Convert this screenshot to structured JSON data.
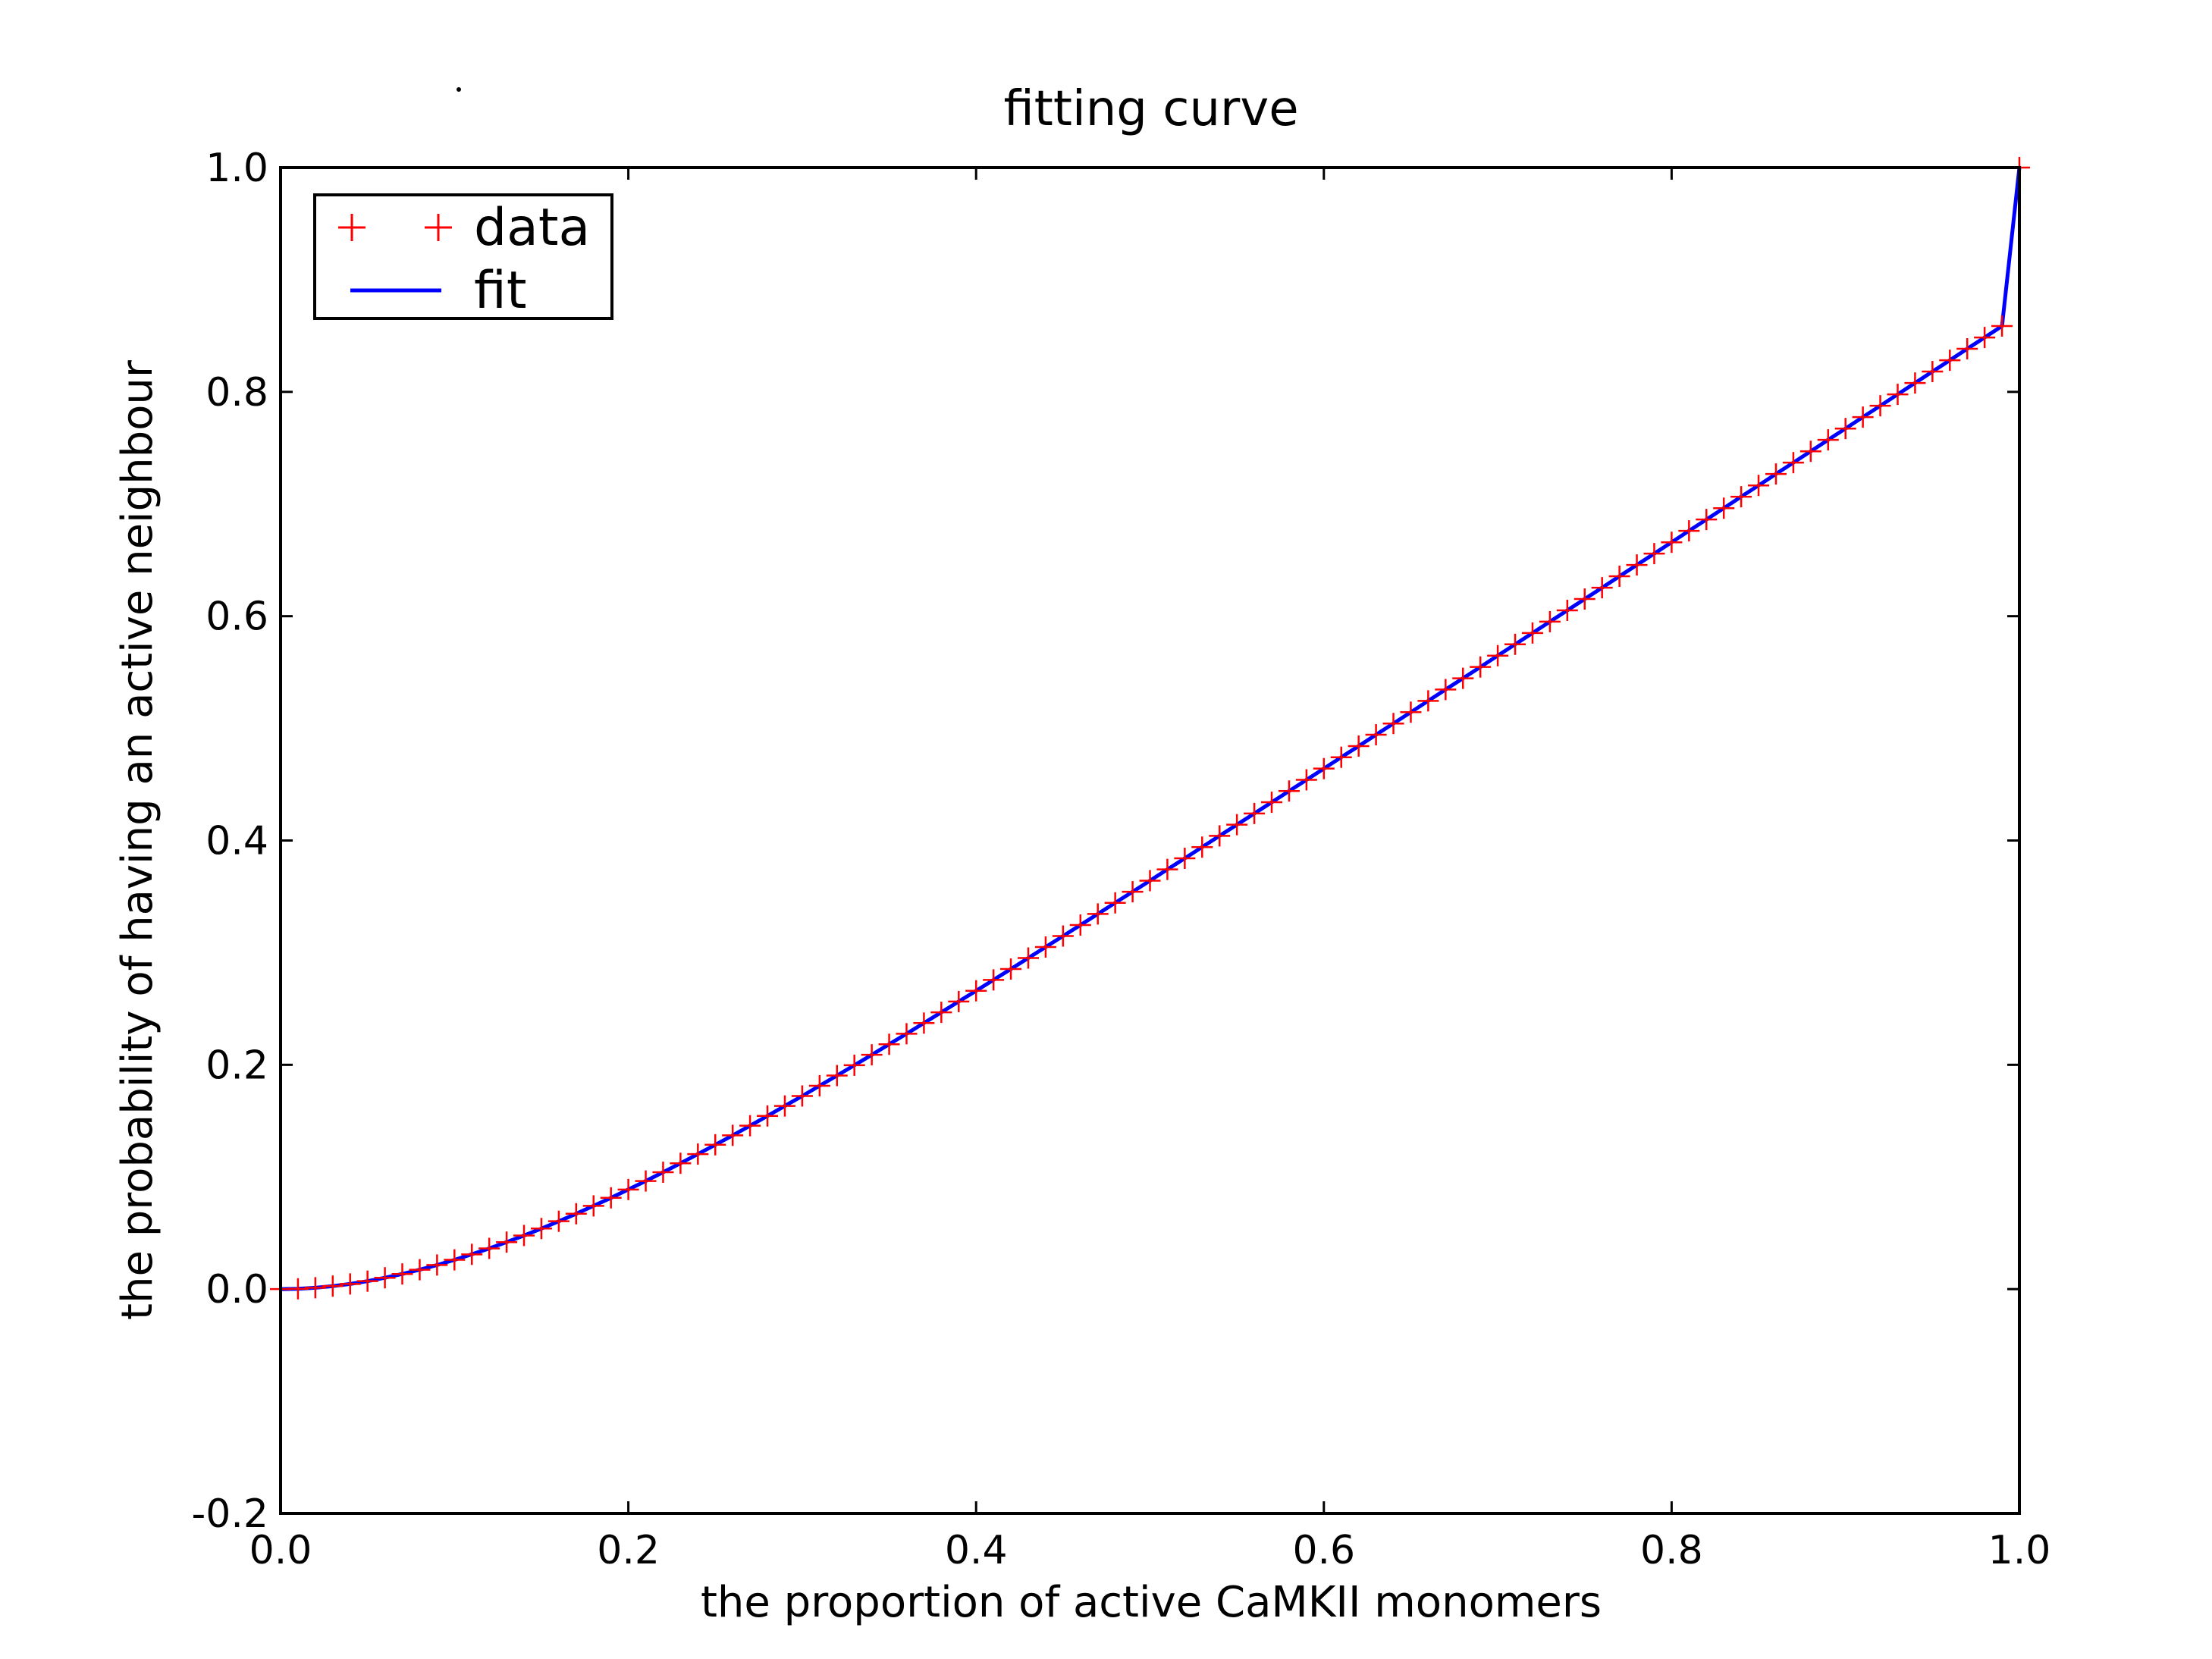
{
  "chart_data": {
    "type": "line",
    "title": "fitting curve",
    "xlabel": "the proportion of active CaMKII monomers",
    "ylabel": "the probability of having an active neighbour",
    "xlim": [
      0.0,
      1.0
    ],
    "ylim": [
      -0.2,
      1.0
    ],
    "x_ticks": [
      "0.0",
      "0.2",
      "0.4",
      "0.6",
      "0.8",
      "1.0"
    ],
    "y_ticks": [
      "-0.2",
      "0.0",
      "0.2",
      "0.4",
      "0.6",
      "0.8",
      "1.0"
    ],
    "grid": false,
    "legend_position": "top-left",
    "series": [
      {
        "name": "data",
        "style": "markers",
        "marker": "plus",
        "color": "#ff0000",
        "x": [
          0.0,
          0.01,
          0.02,
          0.03,
          0.04,
          0.05,
          0.06,
          0.07,
          0.08,
          0.09,
          0.1,
          0.11,
          0.12,
          0.13,
          0.14,
          0.15,
          0.16,
          0.17,
          0.18,
          0.19,
          0.2,
          0.21,
          0.22,
          0.23,
          0.24,
          0.25,
          0.26,
          0.27,
          0.28,
          0.29,
          0.3,
          0.31,
          0.32,
          0.33,
          0.34,
          0.35,
          0.36,
          0.37,
          0.38,
          0.39,
          0.4,
          0.41,
          0.42,
          0.43,
          0.44,
          0.45,
          0.46,
          0.47,
          0.48,
          0.49,
          0.5,
          0.51,
          0.52,
          0.53,
          0.54,
          0.55,
          0.56,
          0.57,
          0.58,
          0.59,
          0.6,
          0.61,
          0.62,
          0.63,
          0.64,
          0.65,
          0.66,
          0.67,
          0.68,
          0.69,
          0.7,
          0.71,
          0.72,
          0.73,
          0.74,
          0.75,
          0.76,
          0.77,
          0.78,
          0.79,
          0.8,
          0.81,
          0.82,
          0.83,
          0.84,
          0.85,
          0.86,
          0.87,
          0.88,
          0.89,
          0.9,
          0.91,
          0.92,
          0.93,
          0.94,
          0.95,
          0.96,
          0.97,
          0.98,
          0.99,
          1.0
        ],
        "y": [
          0.0,
          0.0003,
          0.0012,
          0.0027,
          0.0046,
          0.0071,
          0.0101,
          0.0135,
          0.0173,
          0.0215,
          0.0261,
          0.031,
          0.0363,
          0.0419,
          0.0478,
          0.054,
          0.0605,
          0.0672,
          0.0742,
          0.0814,
          0.0888,
          0.0964,
          0.1042,
          0.1122,
          0.1204,
          0.1287,
          0.1371,
          0.1457,
          0.1544,
          0.1633,
          0.1722,
          0.1813,
          0.1904,
          0.1996,
          0.2089,
          0.2183,
          0.2277,
          0.2372,
          0.2468,
          0.2564,
          0.266,
          0.2757,
          0.2854,
          0.2952,
          0.305,
          0.3148,
          0.3246,
          0.3345,
          0.3444,
          0.3543,
          0.3642,
          0.3742,
          0.3841,
          0.3941,
          0.4041,
          0.4141,
          0.4241,
          0.4341,
          0.4441,
          0.4541,
          0.4641,
          0.4742,
          0.4842,
          0.4943,
          0.5043,
          0.5144,
          0.5245,
          0.5346,
          0.5446,
          0.5547,
          0.5648,
          0.5749,
          0.585,
          0.5951,
          0.6052,
          0.6153,
          0.6254,
          0.6356,
          0.6457,
          0.6558,
          0.6659,
          0.6761,
          0.6862,
          0.6963,
          0.7065,
          0.7166,
          0.7268,
          0.7369,
          0.747,
          0.7572,
          0.7673,
          0.7775,
          0.7876,
          0.7978,
          0.8079,
          0.8181,
          0.8282,
          0.8384,
          0.8485,
          0.8587,
          1.0
        ]
      },
      {
        "name": "fit",
        "style": "line",
        "color": "#0000ff",
        "x": [
          0.0,
          0.01,
          0.02,
          0.03,
          0.04,
          0.05,
          0.06,
          0.07,
          0.08,
          0.09,
          0.1,
          0.11,
          0.12,
          0.13,
          0.14,
          0.15,
          0.16,
          0.17,
          0.18,
          0.19,
          0.2,
          0.21,
          0.22,
          0.23,
          0.24,
          0.25,
          0.26,
          0.27,
          0.28,
          0.29,
          0.3,
          0.31,
          0.32,
          0.33,
          0.34,
          0.35,
          0.36,
          0.37,
          0.38,
          0.39,
          0.4,
          0.41,
          0.42,
          0.43,
          0.44,
          0.45,
          0.46,
          0.47,
          0.48,
          0.49,
          0.5,
          0.51,
          0.52,
          0.53,
          0.54,
          0.55,
          0.56,
          0.57,
          0.58,
          0.59,
          0.6,
          0.61,
          0.62,
          0.63,
          0.64,
          0.65,
          0.66,
          0.67,
          0.68,
          0.69,
          0.7,
          0.71,
          0.72,
          0.73,
          0.74,
          0.75,
          0.76,
          0.77,
          0.78,
          0.79,
          0.8,
          0.81,
          0.82,
          0.83,
          0.84,
          0.85,
          0.86,
          0.87,
          0.88,
          0.89,
          0.9,
          0.91,
          0.92,
          0.93,
          0.94,
          0.95,
          0.96,
          0.97,
          0.98,
          0.99,
          1.0
        ],
        "y": [
          0.0,
          0.0003,
          0.0012,
          0.0027,
          0.0046,
          0.0071,
          0.0101,
          0.0135,
          0.0173,
          0.0215,
          0.0261,
          0.031,
          0.0363,
          0.0419,
          0.0478,
          0.054,
          0.0605,
          0.0672,
          0.0742,
          0.0814,
          0.0888,
          0.0964,
          0.1042,
          0.1122,
          0.1204,
          0.1287,
          0.1371,
          0.1457,
          0.1544,
          0.1633,
          0.1722,
          0.1813,
          0.1904,
          0.1996,
          0.2089,
          0.2183,
          0.2277,
          0.2372,
          0.2468,
          0.2564,
          0.266,
          0.2757,
          0.2854,
          0.2952,
          0.305,
          0.3148,
          0.3246,
          0.3345,
          0.3444,
          0.3543,
          0.3642,
          0.3742,
          0.3841,
          0.3941,
          0.4041,
          0.4141,
          0.4241,
          0.4341,
          0.4441,
          0.4541,
          0.4641,
          0.4742,
          0.4842,
          0.4943,
          0.5043,
          0.5144,
          0.5245,
          0.5346,
          0.5446,
          0.5547,
          0.5648,
          0.5749,
          0.585,
          0.5951,
          0.6052,
          0.6153,
          0.6254,
          0.6356,
          0.6457,
          0.6558,
          0.6659,
          0.6761,
          0.6862,
          0.6963,
          0.7065,
          0.7166,
          0.7268,
          0.7369,
          0.747,
          0.7572,
          0.7673,
          0.7775,
          0.7876,
          0.7978,
          0.8079,
          0.8181,
          0.8282,
          0.8384,
          0.8485,
          0.8587,
          1.0
        ]
      }
    ]
  }
}
